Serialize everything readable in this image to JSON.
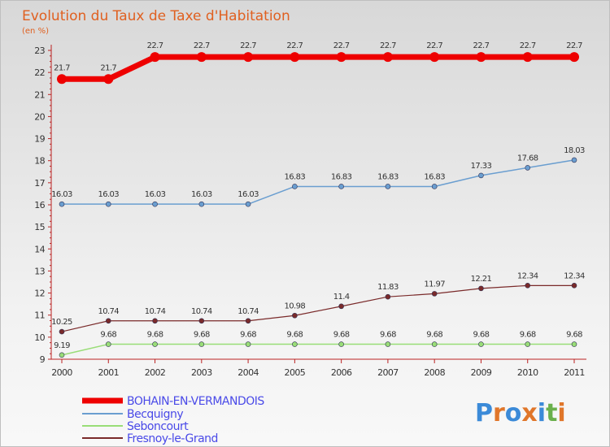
{
  "chart_data": {
    "type": "line",
    "title": "Evolution du Taux de Taxe d'Habitation",
    "subtitle": "(en %)",
    "x": [
      "2000",
      "2001",
      "2002",
      "2003",
      "2004",
      "2005",
      "2006",
      "2007",
      "2008",
      "2009",
      "2010",
      "2011"
    ],
    "ylim": [
      9,
      23
    ],
    "y_ticks": [
      9,
      10,
      11,
      12,
      13,
      14,
      15,
      16,
      17,
      18,
      19,
      20,
      21,
      22,
      23
    ],
    "grid": false,
    "legend_position": "bottom-left",
    "series": [
      {
        "name": "BOHAIN-EN-VERMANDOIS",
        "color": "#ee0000",
        "values": [
          21.7,
          21.7,
          22.7,
          22.7,
          22.7,
          22.7,
          22.7,
          22.7,
          22.7,
          22.7,
          22.7,
          22.7
        ],
        "labels": [
          "21.7",
          "21.7",
          "22.7",
          "22.7",
          "22.7",
          "22.7",
          "22.7",
          "22.7",
          "22.7",
          "22.7",
          "22.7",
          "22.7"
        ]
      },
      {
        "name": "Becquigny",
        "color": "#6a9ed0",
        "values": [
          16.03,
          16.03,
          16.03,
          16.03,
          16.03,
          16.83,
          16.83,
          16.83,
          16.83,
          17.33,
          17.68,
          18.03
        ],
        "labels": [
          "16.03",
          "16.03",
          "16.03",
          "16.03",
          "16.03",
          "16.83",
          "16.83",
          "16.83",
          "16.83",
          "17.33",
          "17.68",
          "18.03"
        ]
      },
      {
        "name": "Seboncourt",
        "color": "#99dd77",
        "values": [
          9.19,
          9.68,
          9.68,
          9.68,
          9.68,
          9.68,
          9.68,
          9.68,
          9.68,
          9.68,
          9.68,
          9.68
        ],
        "labels": [
          "9.19",
          "9.68",
          "9.68",
          "9.68",
          "9.68",
          "9.68",
          "9.68",
          "9.68",
          "9.68",
          "9.68",
          "9.68",
          "9.68"
        ]
      },
      {
        "name": "Fresnoy-le-Grand",
        "color": "#7a2a2a",
        "values": [
          10.25,
          10.74,
          10.74,
          10.74,
          10.74,
          10.98,
          11.4,
          11.83,
          11.97,
          12.21,
          12.34,
          12.34
        ],
        "labels": [
          "10.25",
          "10.74",
          "10.74",
          "10.74",
          "10.74",
          "10.98",
          "11.4",
          "11.83",
          "11.97",
          "12.21",
          "12.34",
          "12.34"
        ]
      }
    ]
  },
  "logo": {
    "text": "Proxiti",
    "colors": [
      "#3b8ad8",
      "#e0762a",
      "#3b8ad8",
      "#e0762a",
      "#3b8ad8",
      "#6ab04c",
      "#e0762a"
    ]
  }
}
